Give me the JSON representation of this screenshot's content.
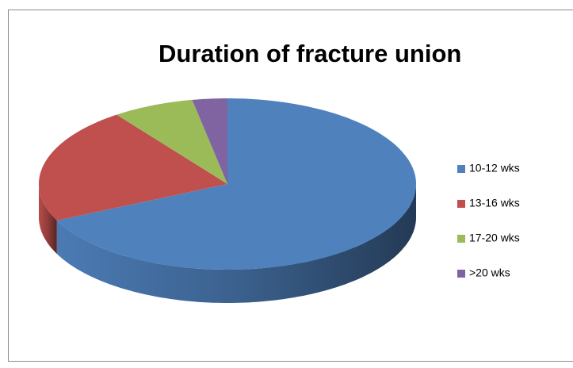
{
  "chart_data": {
    "type": "pie",
    "title": "Duration of fracture union",
    "categories": [
      "10-12 wks",
      "13-16 wks",
      "17-20 wks",
      ">20 wks"
    ],
    "values": [
      68,
      22,
      7,
      3
    ],
    "colors": [
      "#4f81bd",
      "#c0504d",
      "#9bbb59",
      "#8064a2"
    ],
    "legend": "right"
  }
}
